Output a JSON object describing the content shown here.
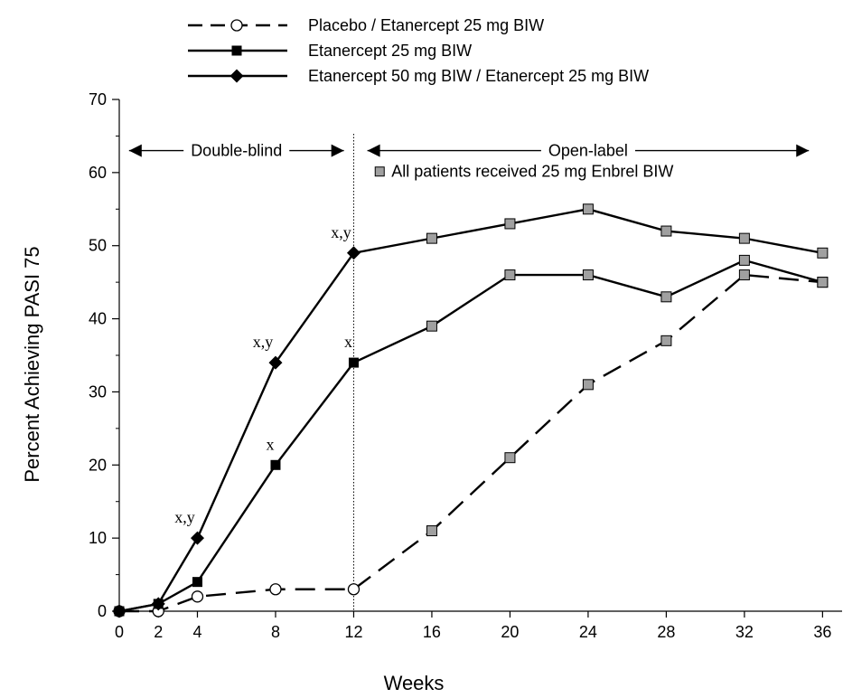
{
  "chart_data": {
    "type": "line",
    "xlabel": "Weeks",
    "ylabel": "Percent Achieving PASI 75",
    "x": [
      0,
      2,
      4,
      8,
      12,
      16,
      20,
      24,
      28,
      32,
      36
    ],
    "xlim": [
      0,
      37
    ],
    "ylim": [
      0,
      70
    ],
    "x_ticks": [
      0,
      2,
      4,
      8,
      12,
      16,
      20,
      24,
      28,
      32,
      36
    ],
    "y_ticks": [
      0,
      10,
      20,
      30,
      40,
      50,
      60,
      70
    ],
    "grid": false,
    "legend_position": "top",
    "series": [
      {
        "name": "Placebo / Etanercept 25 mg BIW",
        "line_style": "dashed",
        "marker": "open-circle",
        "values": [
          0,
          0,
          2,
          3,
          3,
          11,
          21,
          31,
          37,
          46,
          45
        ]
      },
      {
        "name": "Etanercept 25 mg BIW",
        "line_style": "solid",
        "marker": "filled-square",
        "values": [
          0,
          1,
          4,
          20,
          34,
          39,
          46,
          46,
          43,
          48,
          45
        ]
      },
      {
        "name": "Etanercept 50 mg BIW / Etanercept 25 mg BIW",
        "line_style": "solid",
        "marker": "filled-diamond",
        "values": [
          0,
          1,
          10,
          34,
          49,
          51,
          53,
          55,
          52,
          51,
          49
        ]
      }
    ],
    "open_label_marker_color": "#a0a0a0",
    "phase_divider_x": 12,
    "phases": [
      {
        "label": "Double-blind",
        "from": 0.5,
        "to": 11.5,
        "y": 63
      },
      {
        "label": "Open-label",
        "from": 12.7,
        "to": 35.3,
        "y": 63
      }
    ],
    "open_label_note": "All patients received  25 mg Enbrel BIW",
    "annotations": [
      {
        "text": "x,y",
        "x": 4,
        "y": 10,
        "series": 2
      },
      {
        "text": "x,y",
        "x": 8,
        "y": 34,
        "series": 2
      },
      {
        "text": "x,y",
        "x": 12,
        "y": 49,
        "series": 2
      },
      {
        "text": "x",
        "x": 8,
        "y": 20,
        "series": 1
      },
      {
        "text": "x",
        "x": 12,
        "y": 34,
        "series": 1
      }
    ]
  }
}
